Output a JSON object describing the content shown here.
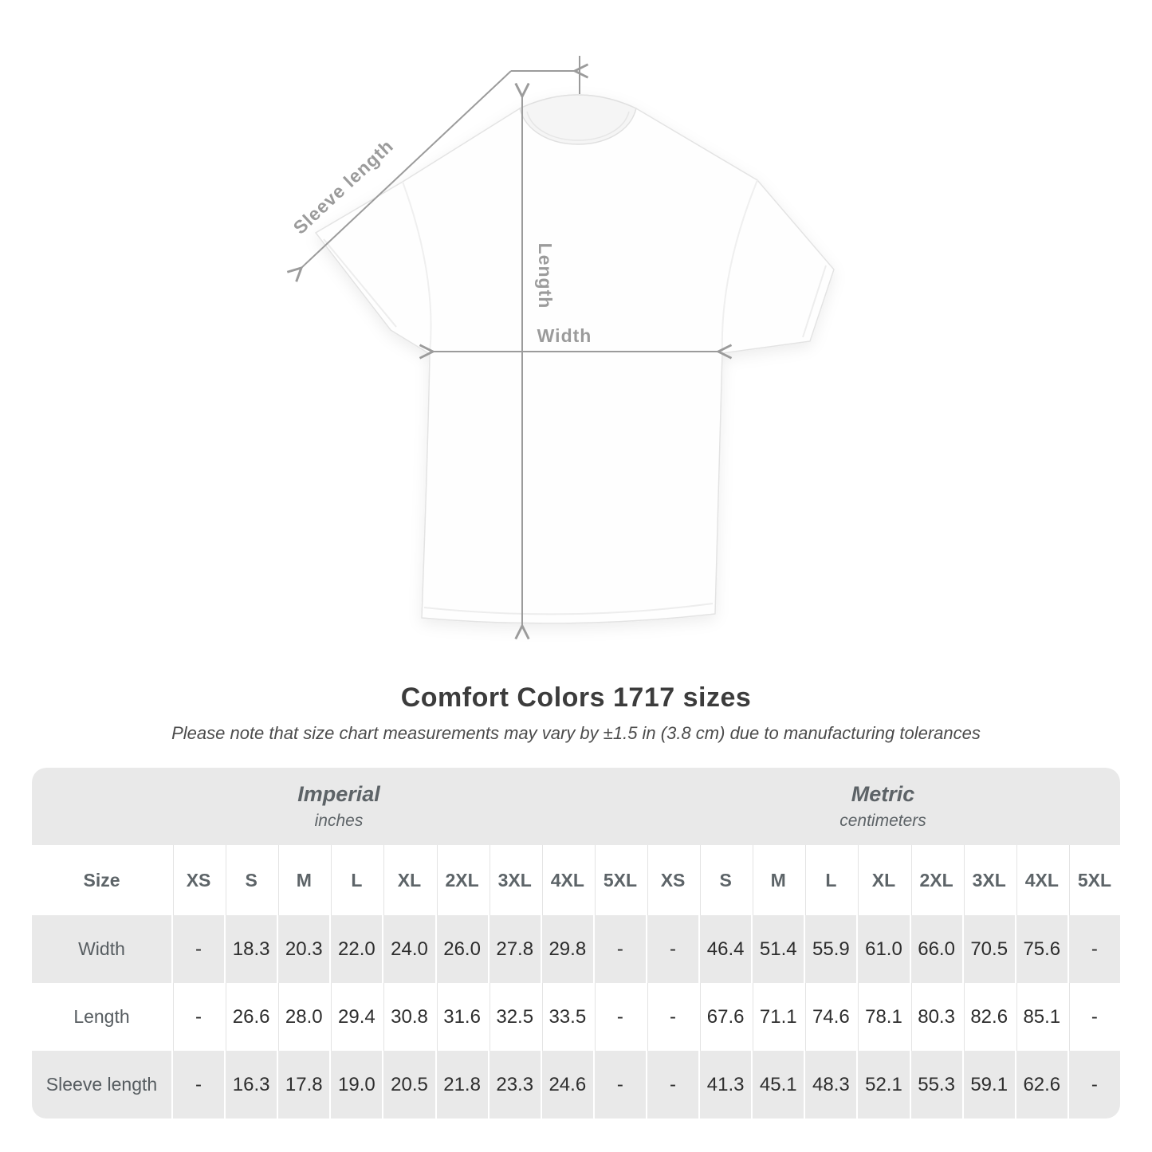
{
  "diagram": {
    "labels": {
      "sleeve_length": "Sleeve length",
      "length": "Length",
      "width": "Width"
    }
  },
  "chart_data": {
    "type": "table",
    "title": "Comfort Colors 1717 sizes",
    "subtitle": "Please note that size chart measurements may vary by ±1.5 in (3.8 cm) due to manufacturing tolerances",
    "corner_label": "Size",
    "unit_groups": [
      {
        "name": "Imperial",
        "unit": "inches",
        "columns": [
          "XS",
          "S",
          "M",
          "L",
          "XL",
          "2XL",
          "3XL",
          "4XL",
          "5XL"
        ]
      },
      {
        "name": "Metric",
        "unit": "centimeters",
        "columns": [
          "XS",
          "S",
          "M",
          "L",
          "XL",
          "2XL",
          "3XL",
          "4XL",
          "5XL"
        ]
      }
    ],
    "rows": [
      {
        "label": "Width",
        "imperial": [
          "-",
          "18.3",
          "20.3",
          "22.0",
          "24.0",
          "26.0",
          "27.8",
          "29.8",
          "-"
        ],
        "metric": [
          "-",
          "46.4",
          "51.4",
          "55.9",
          "61.0",
          "66.0",
          "70.5",
          "75.6",
          "-"
        ]
      },
      {
        "label": "Length",
        "imperial": [
          "-",
          "26.6",
          "28.0",
          "29.4",
          "30.8",
          "31.6",
          "32.5",
          "33.5",
          "-"
        ],
        "metric": [
          "-",
          "67.6",
          "71.1",
          "74.6",
          "78.1",
          "80.3",
          "82.6",
          "85.1",
          "-"
        ]
      },
      {
        "label": "Sleeve length",
        "imperial": [
          "-",
          "16.3",
          "17.8",
          "19.0",
          "20.5",
          "21.8",
          "23.3",
          "24.6",
          "-"
        ],
        "metric": [
          "-",
          "41.3",
          "45.1",
          "48.3",
          "52.1",
          "55.3",
          "59.1",
          "62.6",
          "-"
        ]
      }
    ]
  },
  "colors": {
    "band_gray": "#e9e9e9",
    "measure_gray": "#9b9b9b",
    "title_text": "#3c3c3c",
    "header_text": "#5d6367",
    "value_text": "#2d2d2d"
  }
}
